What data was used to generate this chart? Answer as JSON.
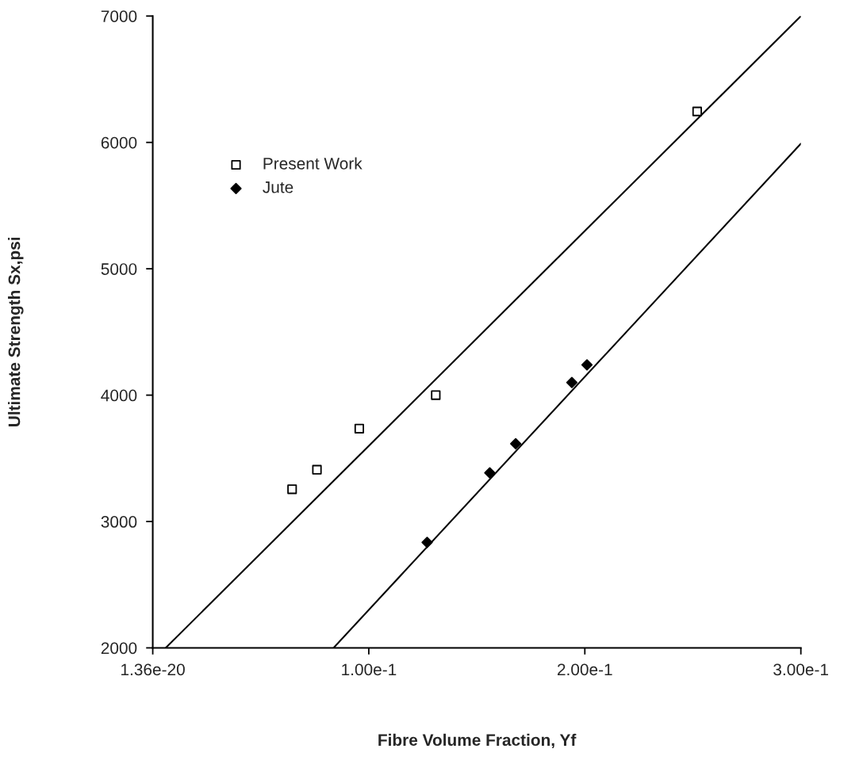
{
  "chart_data": {
    "type": "scatter",
    "xlabel": "Fibre Volume Fraction, Yf",
    "ylabel": "Ultimate Strength Sx,psi",
    "xlim": [
      0,
      0.3
    ],
    "xticks": [
      {
        "value": 0,
        "label": "1.36e-20"
      },
      {
        "value": 0.1,
        "label": "1.00e-1"
      },
      {
        "value": 0.2,
        "label": "2.00e-1"
      },
      {
        "value": 0.3,
        "label": "3.00e-1"
      }
    ],
    "ylim": [
      2000,
      7000
    ],
    "yticks": [
      2000,
      3000,
      4000,
      5000,
      6000,
      7000
    ],
    "grid": false,
    "legend": "top left",
    "series": [
      {
        "name": "Present Work",
        "color": "#000000",
        "marker": "square",
        "x": [
          0.0645,
          0.076,
          0.0956,
          0.131,
          0.252
        ],
        "values": [
          3255,
          3410,
          3735,
          4000,
          6245
        ]
      },
      {
        "name": "Jute",
        "color": "#000000",
        "marker": "diamond",
        "x": [
          0.127,
          0.156,
          0.168,
          0.194,
          0.201
        ],
        "values": [
          2835,
          3385,
          3615,
          4100,
          4240
        ]
      },
      {
        "type": "line",
        "color": "#000000",
        "x": [
          0.006,
          0.3
        ],
        "values": [
          2000,
          7000
        ]
      },
      {
        "type": "line",
        "color": "#000000",
        "x": [
          0.0837,
          0.3
        ],
        "values": [
          2000,
          5990
        ]
      }
    ]
  }
}
